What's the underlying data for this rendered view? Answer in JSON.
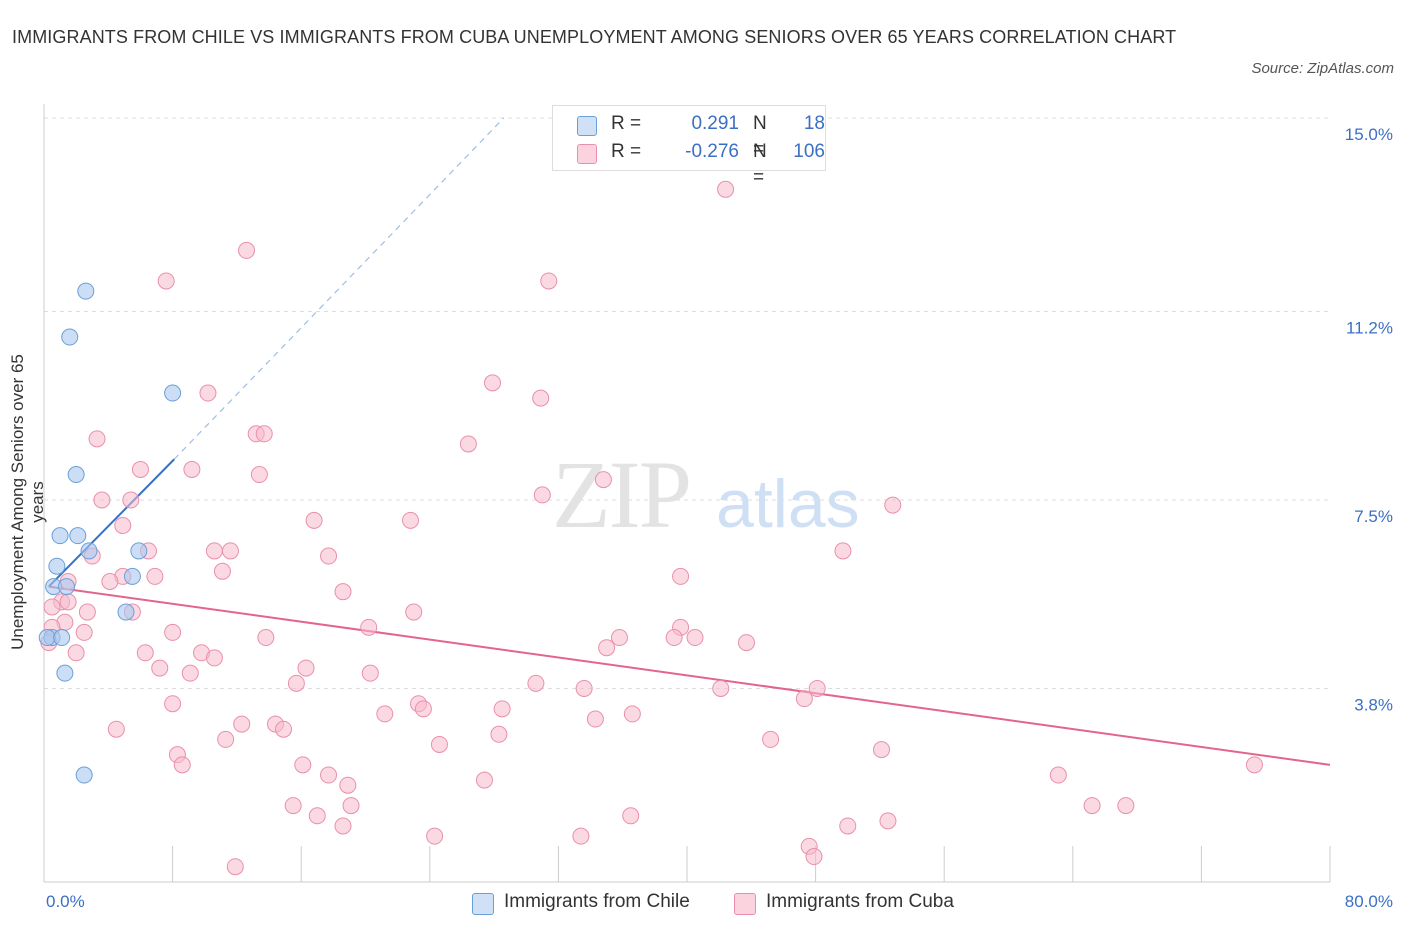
{
  "title": "IMMIGRANTS FROM CHILE VS IMMIGRANTS FROM CUBA UNEMPLOYMENT AMONG SENIORS OVER 65 YEARS CORRELATION CHART",
  "source": "Source: ZipAtlas.com",
  "watermark": {
    "zip": "ZIP",
    "atlas": "atlas"
  },
  "legend_top": [
    {
      "name": "chile",
      "r_label": "R =",
      "r_value": "0.291",
      "n_label": "N =",
      "n_value": "18",
      "color": "#a9c8f0"
    },
    {
      "name": "cuba",
      "r_label": "R =",
      "r_value": "-0.276",
      "n_label": "N =",
      "n_value": "106",
      "color": "#f7b9cc"
    }
  ],
  "legend_bottom": [
    "Immigrants from Chile",
    "Immigrants from Cuba"
  ],
  "colors": {
    "chile_fill": "#a9c8f0",
    "chile_stroke": "#6a9fd8",
    "chile_line": "#3471c8",
    "cuba_fill": "#f7b9cc",
    "cuba_stroke": "#ea8fab",
    "cuba_line": "#e2648f",
    "tick_text": "#3b6fc6",
    "grid": "#dddddd"
  },
  "chart_data": {
    "type": "scatter",
    "title": "IMMIGRANTS FROM CHILE VS IMMIGRANTS FROM CUBA UNEMPLOYMENT AMONG SENIORS OVER 65 YEARS CORRELATION CHART",
    "xlabel": "",
    "ylabel": "Unemployment Among Seniors over 65 years",
    "xlim": [
      0,
      80
    ],
    "ylim": [
      0,
      15
    ],
    "x_tick_labels": [
      "0.0%",
      "80.0%"
    ],
    "y_ticks": [
      3.8,
      7.5,
      11.2,
      15.0
    ],
    "y_tick_labels": [
      "3.8%",
      "7.5%",
      "11.2%",
      "15.0%"
    ],
    "grid": true,
    "legend_position": "top-center",
    "series": [
      {
        "name": "Immigrants from Chile",
        "r": 0.291,
        "n": 18,
        "trend": {
          "x0": 0.3,
          "y0": 5.8,
          "x1": 8.1,
          "y1": 8.3,
          "dashed_to": [
            28.6,
            15.0
          ]
        },
        "points": [
          [
            2.6,
            11.6
          ],
          [
            1.6,
            10.7
          ],
          [
            8.0,
            9.6
          ],
          [
            2.0,
            8.0
          ],
          [
            1.0,
            6.8
          ],
          [
            2.1,
            6.8
          ],
          [
            2.8,
            6.5
          ],
          [
            5.9,
            6.5
          ],
          [
            0.8,
            6.2
          ],
          [
            5.5,
            6.0
          ],
          [
            0.6,
            5.8
          ],
          [
            1.4,
            5.8
          ],
          [
            5.1,
            5.3
          ],
          [
            0.5,
            4.8
          ],
          [
            0.2,
            4.8
          ],
          [
            1.1,
            4.8
          ],
          [
            1.3,
            4.1
          ],
          [
            2.5,
            2.1
          ]
        ]
      },
      {
        "name": "Immigrants from Cuba",
        "r": -0.276,
        "n": 106,
        "trend": {
          "x0": 0.3,
          "y0": 5.8,
          "x1": 80.0,
          "y1": 2.3
        },
        "points": [
          [
            42.4,
            13.6
          ],
          [
            12.6,
            12.4
          ],
          [
            31.4,
            11.8
          ],
          [
            7.6,
            11.8
          ],
          [
            27.9,
            9.8
          ],
          [
            10.2,
            9.6
          ],
          [
            30.9,
            9.5
          ],
          [
            3.3,
            8.7
          ],
          [
            13.2,
            8.8
          ],
          [
            13.7,
            8.8
          ],
          [
            26.4,
            8.6
          ],
          [
            6.0,
            8.1
          ],
          [
            9.2,
            8.1
          ],
          [
            13.4,
            8.0
          ],
          [
            34.8,
            7.9
          ],
          [
            3.6,
            7.5
          ],
          [
            5.4,
            7.5
          ],
          [
            31.0,
            7.6
          ],
          [
            52.8,
            7.4
          ],
          [
            16.8,
            7.1
          ],
          [
            22.8,
            7.1
          ],
          [
            4.9,
            7.0
          ],
          [
            10.6,
            6.5
          ],
          [
            11.6,
            6.5
          ],
          [
            6.5,
            6.5
          ],
          [
            3.0,
            6.4
          ],
          [
            17.7,
            6.4
          ],
          [
            49.7,
            6.5
          ],
          [
            11.1,
            6.1
          ],
          [
            6.9,
            6.0
          ],
          [
            4.9,
            6.0
          ],
          [
            39.6,
            6.0
          ],
          [
            1.5,
            5.9
          ],
          [
            4.1,
            5.9
          ],
          [
            18.6,
            5.7
          ],
          [
            1.1,
            5.5
          ],
          [
            1.5,
            5.5
          ],
          [
            0.5,
            5.4
          ],
          [
            5.5,
            5.3
          ],
          [
            2.7,
            5.3
          ],
          [
            23.0,
            5.3
          ],
          [
            1.3,
            5.1
          ],
          [
            20.2,
            5.0
          ],
          [
            39.6,
            5.0
          ],
          [
            0.5,
            5.0
          ],
          [
            2.5,
            4.9
          ],
          [
            8.0,
            4.9
          ],
          [
            13.8,
            4.8
          ],
          [
            35.8,
            4.8
          ],
          [
            39.2,
            4.8
          ],
          [
            40.5,
            4.8
          ],
          [
            0.3,
            4.7
          ],
          [
            43.7,
            4.7
          ],
          [
            35.0,
            4.6
          ],
          [
            2.0,
            4.5
          ],
          [
            6.3,
            4.5
          ],
          [
            9.8,
            4.5
          ],
          [
            10.6,
            4.4
          ],
          [
            16.3,
            4.2
          ],
          [
            7.2,
            4.2
          ],
          [
            20.3,
            4.1
          ],
          [
            9.1,
            4.1
          ],
          [
            15.7,
            3.9
          ],
          [
            30.6,
            3.9
          ],
          [
            33.6,
            3.8
          ],
          [
            42.1,
            3.8
          ],
          [
            48.1,
            3.8
          ],
          [
            47.3,
            3.6
          ],
          [
            23.3,
            3.5
          ],
          [
            8.0,
            3.5
          ],
          [
            23.6,
            3.4
          ],
          [
            28.5,
            3.4
          ],
          [
            21.2,
            3.3
          ],
          [
            36.6,
            3.3
          ],
          [
            34.3,
            3.2
          ],
          [
            12.3,
            3.1
          ],
          [
            14.4,
            3.1
          ],
          [
            14.9,
            3.0
          ],
          [
            4.5,
            3.0
          ],
          [
            11.3,
            2.8
          ],
          [
            28.3,
            2.9
          ],
          [
            45.2,
            2.8
          ],
          [
            24.6,
            2.7
          ],
          [
            52.1,
            2.6
          ],
          [
            8.3,
            2.5
          ],
          [
            8.6,
            2.3
          ],
          [
            16.1,
            2.3
          ],
          [
            75.3,
            2.3
          ],
          [
            17.7,
            2.1
          ],
          [
            63.1,
            2.1
          ],
          [
            27.4,
            2.0
          ],
          [
            18.9,
            1.9
          ],
          [
            15.5,
            1.5
          ],
          [
            19.1,
            1.5
          ],
          [
            67.3,
            1.5
          ],
          [
            65.2,
            1.5
          ],
          [
            36.5,
            1.3
          ],
          [
            17.0,
            1.3
          ],
          [
            18.6,
            1.1
          ],
          [
            50.0,
            1.1
          ],
          [
            52.5,
            1.2
          ],
          [
            24.3,
            0.9
          ],
          [
            33.4,
            0.9
          ],
          [
            47.6,
            0.7
          ],
          [
            47.9,
            0.5
          ],
          [
            11.9,
            0.3
          ]
        ]
      }
    ]
  }
}
